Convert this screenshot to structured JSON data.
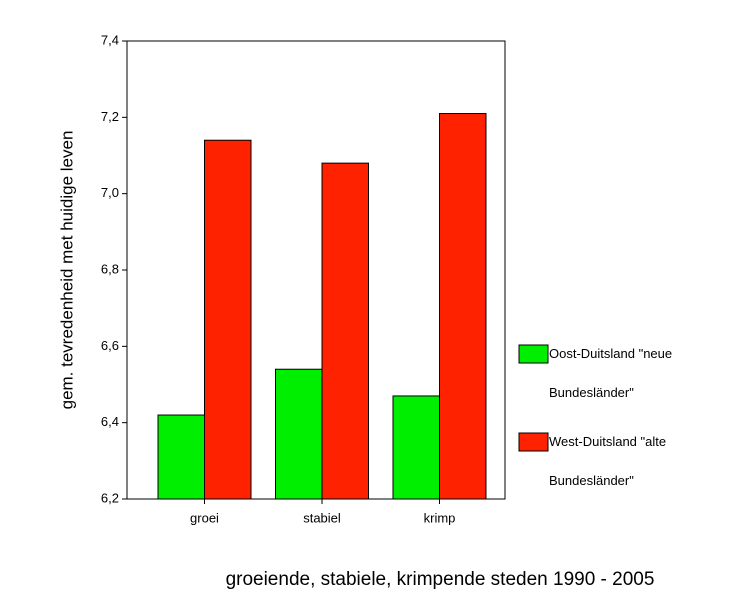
{
  "chart_data": {
    "type": "bar",
    "y_label": "gem. tevredenheid met huidige leven",
    "x_label": "groeiende, stabiele, krimpende steden 1990 - 2005",
    "categories": [
      "groei",
      "stabiel",
      "krimp"
    ],
    "series": [
      {
        "name": "Oost-Duitsland \"neue Bundesländer\"",
        "color": "#00ee00",
        "values": [
          6.42,
          6.54,
          6.47
        ]
      },
      {
        "name": "West-Duitsland \"alte Bundesländer\"",
        "color": "#ff2200",
        "values": [
          7.14,
          7.08,
          7.21
        ]
      }
    ],
    "ylim": [
      6.2,
      7.4
    ],
    "yticks": [
      {
        "value": 6.2,
        "label": "6,2"
      },
      {
        "value": 6.4,
        "label": "6,4"
      },
      {
        "value": 6.6,
        "label": "6,6"
      },
      {
        "value": 6.8,
        "label": "6,8"
      },
      {
        "value": 7.0,
        "label": "7,0"
      },
      {
        "value": 7.2,
        "label": "7,2"
      },
      {
        "value": 7.4,
        "label": "7,4"
      }
    ],
    "legend": "right"
  }
}
